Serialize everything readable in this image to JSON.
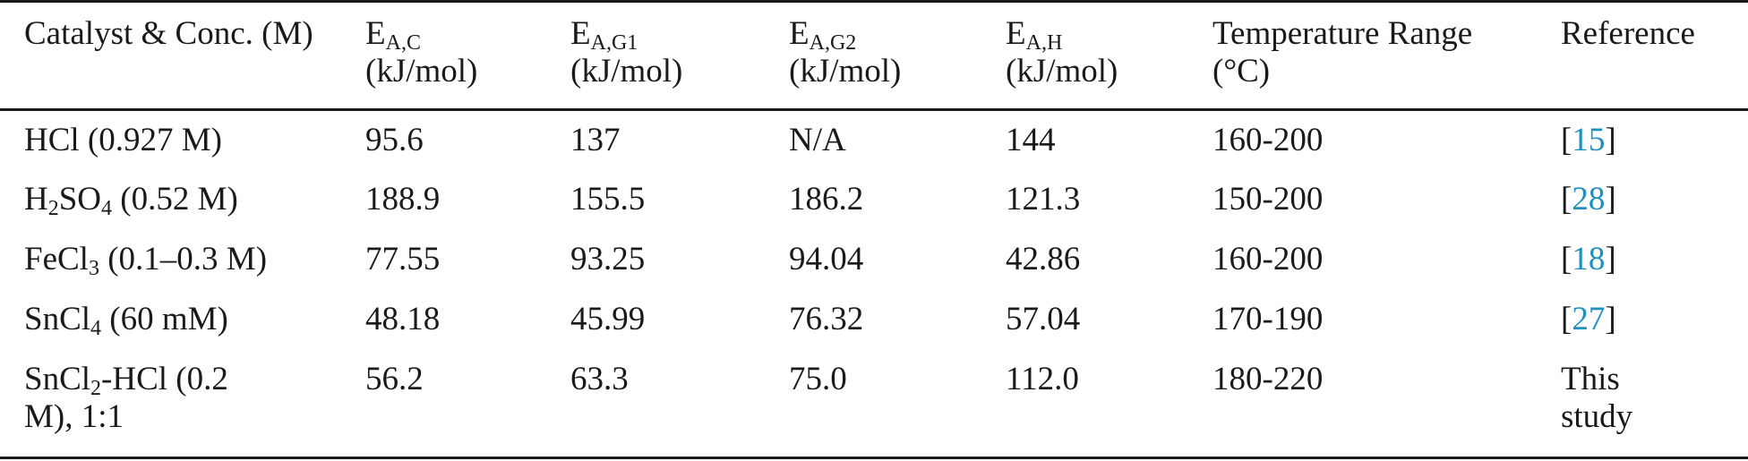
{
  "table": {
    "header": [
      [
        {
          "t": "Catalyst & Conc. (M)"
        }
      ],
      [
        {
          "t": "E"
        },
        {
          "t": "A,C",
          "sub": true
        },
        {
          "t": " (kJ/mol)"
        }
      ],
      [
        {
          "t": "E"
        },
        {
          "t": "A,G1",
          "sub": true
        },
        {
          "t": " (kJ/mol)"
        }
      ],
      [
        {
          "t": "E"
        },
        {
          "t": "A,G2",
          "sub": true
        },
        {
          "t": " (kJ/mol)"
        }
      ],
      [
        {
          "t": "E"
        },
        {
          "t": "A,H",
          "sub": true
        },
        {
          "t": " (kJ/mol)"
        }
      ],
      [
        {
          "t": "Temperature Range (°C)"
        }
      ],
      [
        {
          "t": "Reference"
        }
      ]
    ],
    "rows": [
      [
        [
          {
            "t": "HCl (0.927 M)"
          }
        ],
        [
          {
            "t": "95.6"
          }
        ],
        [
          {
            "t": "137"
          }
        ],
        [
          {
            "t": "N/A"
          }
        ],
        [
          {
            "t": "144"
          }
        ],
        [
          {
            "t": "160-200"
          }
        ],
        [
          {
            "t": "["
          },
          {
            "t": "15",
            "link": true
          },
          {
            "t": "]"
          }
        ]
      ],
      [
        [
          {
            "t": "H"
          },
          {
            "t": "2",
            "sub": true
          },
          {
            "t": "SO"
          },
          {
            "t": "4",
            "sub": true
          },
          {
            "t": " (0.52 M)"
          }
        ],
        [
          {
            "t": "188.9"
          }
        ],
        [
          {
            "t": "155.5"
          }
        ],
        [
          {
            "t": "186.2"
          }
        ],
        [
          {
            "t": "121.3"
          }
        ],
        [
          {
            "t": "150-200"
          }
        ],
        [
          {
            "t": "["
          },
          {
            "t": "28",
            "link": true
          },
          {
            "t": "]"
          }
        ]
      ],
      [
        [
          {
            "t": "FeCl"
          },
          {
            "t": "3",
            "sub": true
          },
          {
            "t": " (0.1–0.3 M)"
          }
        ],
        [
          {
            "t": "77.55"
          }
        ],
        [
          {
            "t": "93.25"
          }
        ],
        [
          {
            "t": "94.04"
          }
        ],
        [
          {
            "t": "42.86"
          }
        ],
        [
          {
            "t": "160-200"
          }
        ],
        [
          {
            "t": "["
          },
          {
            "t": "18",
            "link": true
          },
          {
            "t": "]"
          }
        ]
      ],
      [
        [
          {
            "t": "SnCl"
          },
          {
            "t": "4",
            "sub": true
          },
          {
            "t": " (60 mM)"
          }
        ],
        [
          {
            "t": "48.18"
          }
        ],
        [
          {
            "t": "45.99"
          }
        ],
        [
          {
            "t": "76.32"
          }
        ],
        [
          {
            "t": "57.04"
          }
        ],
        [
          {
            "t": "170-190"
          }
        ],
        [
          {
            "t": "["
          },
          {
            "t": "27",
            "link": true
          },
          {
            "t": "]"
          }
        ]
      ],
      [
        [
          {
            "t": "SnCl"
          },
          {
            "t": "2",
            "sub": true
          },
          {
            "t": "-HCl (0.2 M), 1:1"
          }
        ],
        [
          {
            "t": "56.2"
          }
        ],
        [
          {
            "t": "63.3"
          }
        ],
        [
          {
            "t": "75.0"
          }
        ],
        [
          {
            "t": "112.0"
          }
        ],
        [
          {
            "t": "180-220"
          }
        ],
        [
          {
            "t": "This study"
          }
        ]
      ]
    ]
  }
}
